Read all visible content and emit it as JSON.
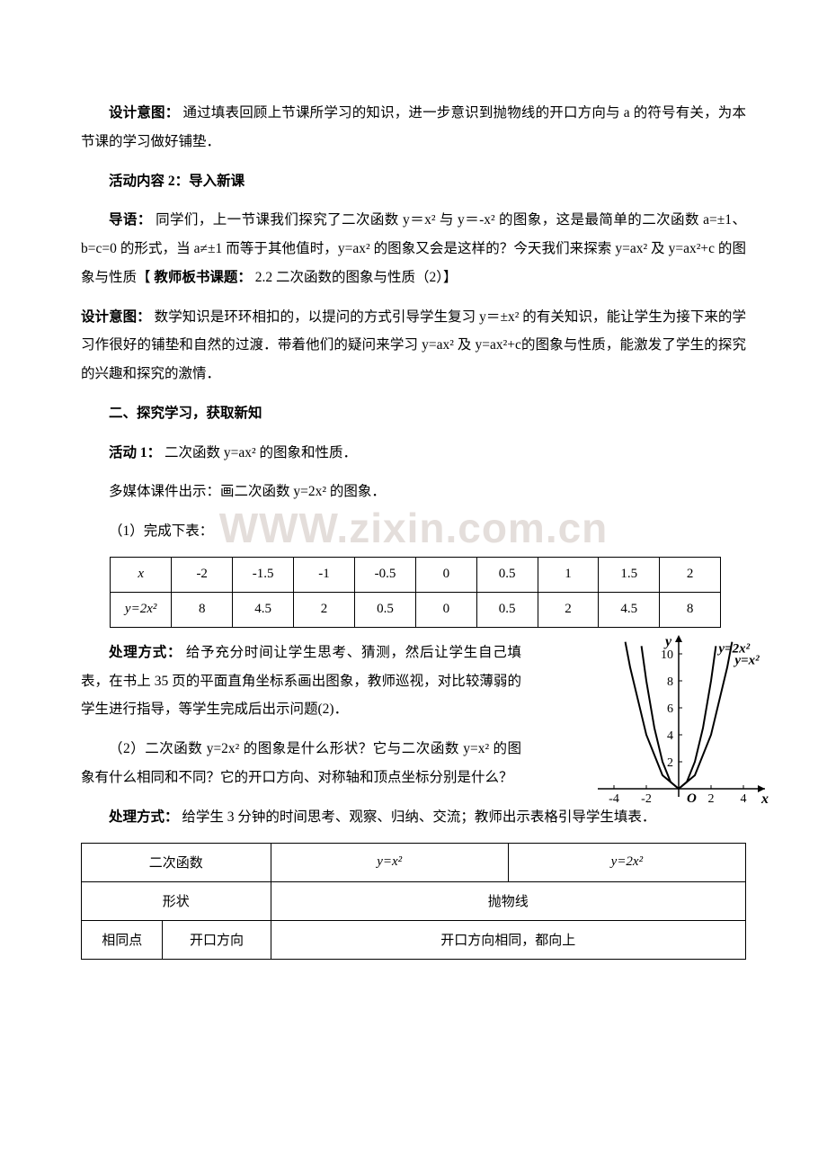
{
  "watermark_text": "WWW.zixin.com.cn",
  "para1_label": "设计意图：",
  "para1_text": "通过填表回顾上节课所学习的知识，进一步意识到抛物线的开口方向与 a 的符号有关，为本节课的学习做好铺垫．",
  "para2_label": "活动内容 2：导入新课",
  "para3_label": "导语：",
  "para3_text": "同学们，上一节课我们探究了二次函数 y＝x² 与 y＝-x² 的图象，这是最简单的二次函数 a=±1、b=c=0 的形式，当 a≠±1 而等于其他值时，y=ax² 的图象又会是这样的？今天我们来探索 y=ax² 及 y=ax²+c 的图象与性质【",
  "para3_bold": "教师板书课题：",
  "para3_tail": "2.2 二次函数的图象与性质（2）】",
  "para4_label": "设计意图：",
  "para4_text": "数学知识是环环相扣的，以提问的方式引导学生复习 y＝±x² 的有关知识，能让学生为接下来的学习作很好的铺垫和自然的过渡．带着他们的疑问来学习 y=ax² 及 y=ax²+c的图象与性质，能激发了学生的探究的兴趣和探究的激情．",
  "sec_heading": "二、探究学习，获取新知",
  "act1_label": "活动 1：",
  "act1_text": "二次函数 y=ax² 的图象和性质．",
  "para5_text": "多媒体课件出示：画二次函数 y=2x² 的图象．",
  "para6_text": "（1）完成下表：",
  "table1": {
    "row_x_label": "x",
    "row_y_label": "y=2x²",
    "cols_x": [
      "-2",
      "-1.5",
      "-1",
      "-0.5",
      "0",
      "0.5",
      "1",
      "1.5",
      "2"
    ],
    "cols_y": [
      "8",
      "4.5",
      "2",
      "0.5",
      "0",
      "0.5",
      "2",
      "4.5",
      "8"
    ]
  },
  "para7_label": "处理方式：",
  "para7_text": "给予充分时间让学生思考、猜测，然后让学生自己填表，在书上 35 页的平面直角坐标系画出图象，教师巡视，对比较薄弱的学生进行指导，等学生完成后出示问题(2)．",
  "para8_text": "（2）二次函数 y=2x² 的图象是什么形状？它与二次函数 y=x² 的图象有什么相同和不同？它的开口方向、对称轴和顶点坐标分别是什么？",
  "para9_label": "处理方式：",
  "para9_text": "给学生 3 分钟的时间思考、观察、归纳、交流；教师出示表格引导学生填表．",
  "table2": {
    "r1c1": "二次函数",
    "r1c2_html": "y=x²",
    "r1c3_html": "y=2x²",
    "r2c1": "形状",
    "r2c2": "抛物线",
    "r3c1": "相同点",
    "r3c2": "开口方向",
    "r3c3": "开口方向相同，都向上"
  },
  "figure": {
    "background": "#ffffff",
    "axis_color": "#000000",
    "curve_color": "#000000",
    "line_width_outer": 2,
    "line_width_inner": 2,
    "xlim": [
      -5,
      5
    ],
    "ylim": [
      -1,
      11
    ],
    "yticks": [
      2,
      4,
      6,
      8,
      10
    ],
    "xticks": [
      -4,
      -2,
      2,
      4
    ],
    "origin_label": "O",
    "x_label": "x",
    "y_label": "y",
    "curve1_label": "y=2x²",
    "curve2_label": "y=x²",
    "curve1": [
      [
        -2.3,
        10.58
      ],
      [
        -2,
        8
      ],
      [
        -1.5,
        4.5
      ],
      [
        -1,
        2
      ],
      [
        -0.5,
        0.5
      ],
      [
        0,
        0
      ],
      [
        0.5,
        0.5
      ],
      [
        1,
        2
      ],
      [
        1.5,
        4.5
      ],
      [
        2,
        8
      ],
      [
        2.3,
        10.58
      ]
    ],
    "curve2": [
      [
        -3.3,
        10.89
      ],
      [
        -3,
        9
      ],
      [
        -2,
        4
      ],
      [
        -1,
        1
      ],
      [
        0,
        0
      ],
      [
        1,
        1
      ],
      [
        2,
        4
      ],
      [
        3,
        9
      ],
      [
        3.3,
        10.89
      ]
    ]
  }
}
